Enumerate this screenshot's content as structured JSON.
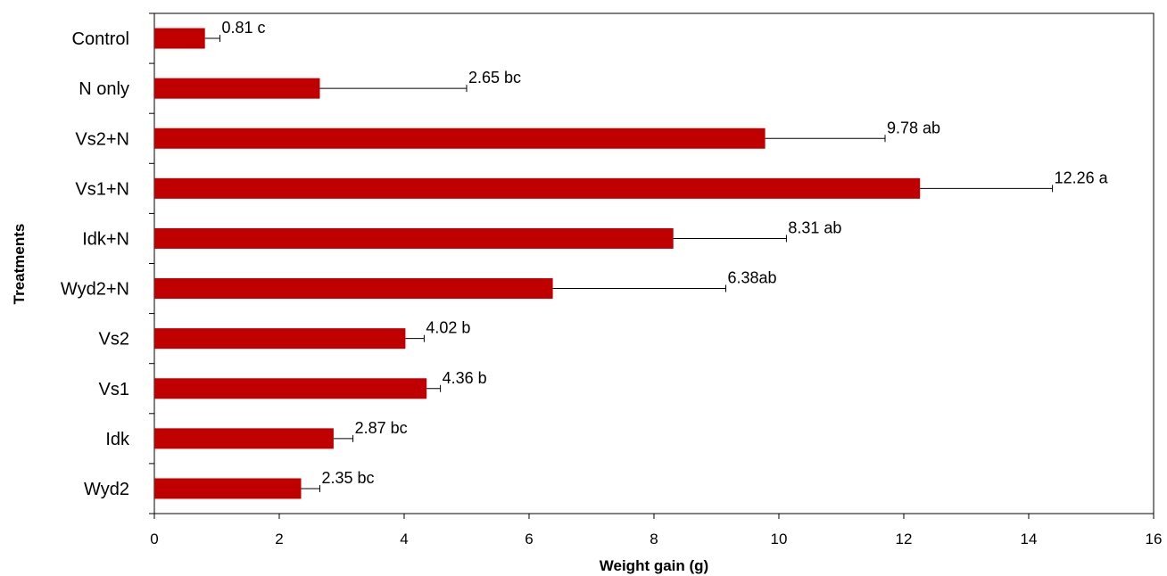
{
  "chart_data": {
    "type": "bar",
    "orientation": "horizontal",
    "categories": [
      "Control",
      "N only",
      "Vs2+N",
      "Vs1+N",
      "Idk+N",
      "Wyd2+N",
      "Vs2",
      "Vs1",
      "Idk",
      "Wyd2"
    ],
    "values": [
      0.81,
      2.65,
      9.78,
      12.26,
      8.31,
      6.38,
      4.02,
      4.36,
      2.87,
      2.35
    ],
    "error_upper": [
      1.05,
      5.0,
      11.7,
      14.38,
      10.12,
      9.15,
      4.32,
      4.58,
      3.18,
      2.65
    ],
    "data_labels": [
      "0.81 c",
      "2.65 bc",
      "9.78 ab",
      "12.26 a",
      "8.31 ab",
      "6.38ab",
      "4.02 b",
      "4.36 b",
      "2.87 bc",
      "2.35 bc"
    ],
    "xlabel": "Weight gain (g)",
    "ylabel": "Treatments",
    "xlim": [
      0,
      16
    ],
    "xticks": [
      0,
      2,
      4,
      6,
      8,
      10,
      12,
      14,
      16
    ],
    "grid": false,
    "legend": "none",
    "bar_color": "#c00000"
  }
}
